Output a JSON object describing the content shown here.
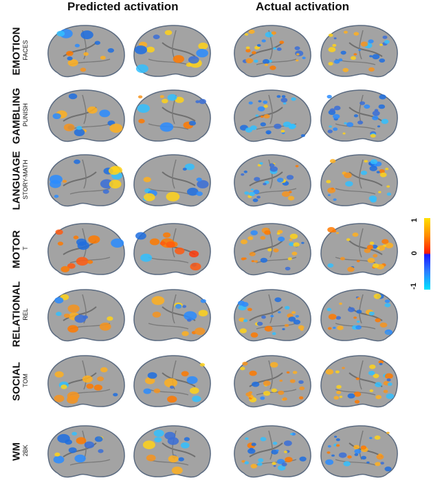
{
  "columns": {
    "predicted": "Predicted activation",
    "actual": "Actual activation"
  },
  "rows": [
    {
      "task": "EMOTION",
      "condition": "FACES"
    },
    {
      "task": "GAMBLING",
      "condition": "PUNISH"
    },
    {
      "task": "LANGUAGE",
      "condition": "STORY-MATH"
    },
    {
      "task": "MOTOR",
      "condition": "T"
    },
    {
      "task": "RELATIONAL",
      "condition": "REL"
    },
    {
      "task": "SOCIAL",
      "condition": "TOM"
    },
    {
      "task": "WM",
      "condition": "2BK"
    }
  ],
  "colorbar": {
    "max": "1",
    "mid": "0",
    "min": "-1",
    "colors": [
      "#ffe000",
      "#ff1a00",
      "#1a1aff",
      "#00e4ff"
    ]
  },
  "brain_color": "#a3a3a3"
}
